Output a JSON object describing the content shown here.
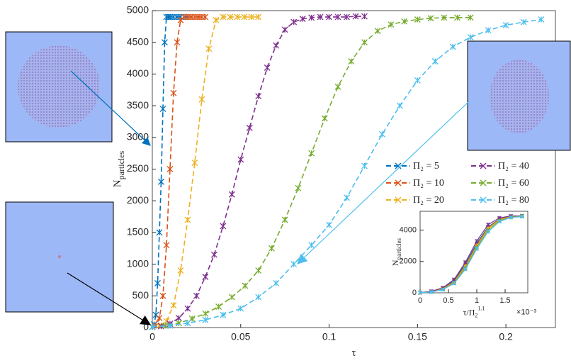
{
  "chart_data": [
    {
      "type": "line",
      "xlabel": "τ",
      "ylabel": [
        "N",
        "particles"
      ],
      "xlim": [
        0,
        0.228
      ],
      "ylim": [
        0,
        5000
      ],
      "xticks": [
        0,
        0.05,
        0.1,
        0.15,
        0.2
      ],
      "yticks": [
        0,
        500,
        1000,
        1500,
        2000,
        2500,
        3000,
        3500,
        4000,
        4500,
        5000
      ],
      "legend": "right",
      "series": [
        {
          "name": "Π₂ = 5",
          "color": "#0072BD",
          "x": [
            0,
            0.001,
            0.002,
            0.003,
            0.004,
            0.005,
            0.006,
            0.007,
            0.008,
            0.009,
            0.01,
            0.012,
            0.014,
            0.016,
            0.018,
            0.02
          ],
          "values": [
            10,
            50,
            200,
            700,
            1500,
            2300,
            3450,
            4500,
            4900,
            4900,
            4900,
            4900,
            4900,
            4900,
            4900,
            4900
          ]
        },
        {
          "name": "Π₂ = 10",
          "color": "#D95319",
          "x": [
            0,
            0.002,
            0.004,
            0.006,
            0.008,
            0.01,
            0.012,
            0.014,
            0.016,
            0.018,
            0.02,
            0.022,
            0.024,
            0.026,
            0.028,
            0.03
          ],
          "values": [
            10,
            30,
            150,
            500,
            1300,
            2500,
            3700,
            4500,
            4850,
            4900,
            4900,
            4900,
            4900,
            4900,
            4900,
            4900
          ]
        },
        {
          "name": "Π₂ = 20",
          "color": "#EDB120",
          "x": [
            0,
            0.004,
            0.008,
            0.012,
            0.016,
            0.02,
            0.024,
            0.028,
            0.032,
            0.036,
            0.04,
            0.044,
            0.048,
            0.052,
            0.056,
            0.06
          ],
          "values": [
            10,
            30,
            100,
            350,
            900,
            1700,
            2600,
            3600,
            4400,
            4850,
            4900,
            4900,
            4900,
            4900,
            4900,
            4900
          ]
        },
        {
          "name": "Π₂ = 40",
          "color": "#7E2F8E",
          "x": [
            0,
            0.005,
            0.01,
            0.015,
            0.02,
            0.025,
            0.03,
            0.035,
            0.04,
            0.045,
            0.05,
            0.055,
            0.06,
            0.065,
            0.07,
            0.075,
            0.08,
            0.085,
            0.09,
            0.095,
            0.1,
            0.105,
            0.11,
            0.115,
            0.12
          ],
          "values": [
            10,
            20,
            60,
            150,
            300,
            500,
            800,
            1150,
            1600,
            2100,
            2650,
            3150,
            3650,
            4100,
            4450,
            4700,
            4820,
            4870,
            4890,
            4900,
            4900,
            4900,
            4900,
            4910,
            4910
          ]
        },
        {
          "name": "Π₂ = 60",
          "color": "#77AC30",
          "x": [
            0,
            0.0075,
            0.015,
            0.0225,
            0.03,
            0.0375,
            0.045,
            0.0525,
            0.06,
            0.0675,
            0.075,
            0.0825,
            0.09,
            0.0975,
            0.105,
            0.1125,
            0.12,
            0.1275,
            0.135,
            0.1425,
            0.15,
            0.1575,
            0.165,
            0.1725,
            0.18
          ],
          "values": [
            10,
            30,
            70,
            140,
            220,
            330,
            480,
            660,
            900,
            1250,
            1700,
            2200,
            2750,
            3300,
            3800,
            4200,
            4500,
            4680,
            4780,
            4830,
            4860,
            4880,
            4890,
            4890,
            4890
          ]
        },
        {
          "name": "Π₂ = 80",
          "color": "#4DBEEE",
          "x": [
            0,
            0.01,
            0.02,
            0.03,
            0.04,
            0.05,
            0.06,
            0.07,
            0.08,
            0.09,
            0.1,
            0.11,
            0.12,
            0.13,
            0.14,
            0.15,
            0.16,
            0.17,
            0.18,
            0.19,
            0.2,
            0.21,
            0.22
          ],
          "values": [
            10,
            30,
            70,
            120,
            200,
            300,
            480,
            700,
            1000,
            1300,
            1620,
            2050,
            2550,
            3050,
            3500,
            3900,
            4200,
            4430,
            4580,
            4690,
            4770,
            4820,
            4860
          ]
        }
      ]
    },
    {
      "type": "line",
      "xlabel": [
        "τ/Π",
        "2",
        "1.1"
      ],
      "x_exponent": "×10⁻³",
      "ylabel": [
        "N",
        "particles"
      ],
      "xlim": [
        0,
        1.9
      ],
      "ylim": [
        0,
        5200
      ],
      "xticks": [
        0,
        0.5,
        1,
        1.5
      ],
      "yticks": [
        0,
        2000,
        4000
      ],
      "series": [
        {
          "color": "#0072BD",
          "x": [
            0,
            0.2,
            0.4,
            0.6,
            0.8,
            1.0,
            1.2,
            1.4,
            1.6,
            1.8
          ],
          "values": [
            10,
            90,
            280,
            780,
            1850,
            3150,
            4200,
            4700,
            4880,
            4900
          ]
        },
        {
          "color": "#D95319",
          "x": [
            0,
            0.2,
            0.4,
            0.6,
            0.8,
            1.0,
            1.2,
            1.4,
            1.6,
            1.8
          ],
          "values": [
            10,
            80,
            260,
            720,
            1750,
            3050,
            4150,
            4680,
            4870,
            4900
          ]
        },
        {
          "color": "#EDB120",
          "x": [
            0,
            0.2,
            0.4,
            0.6,
            0.8,
            1.0,
            1.2,
            1.4,
            1.6,
            1.8
          ],
          "values": [
            10,
            70,
            240,
            680,
            1680,
            2980,
            4100,
            4650,
            4860,
            4900
          ]
        },
        {
          "color": "#7E2F8E",
          "x": [
            0,
            0.2,
            0.4,
            0.6,
            0.8,
            1.0,
            1.2,
            1.4,
            1.6,
            1.8
          ],
          "values": [
            10,
            100,
            320,
            850,
            1950,
            3300,
            4350,
            4780,
            4900,
            4910
          ]
        },
        {
          "color": "#77AC30",
          "x": [
            0,
            0.2,
            0.4,
            0.6,
            0.8,
            1.0,
            1.2,
            1.4,
            1.6,
            1.8
          ],
          "values": [
            10,
            60,
            220,
            640,
            1600,
            2900,
            4000,
            4600,
            4830,
            4890
          ]
        },
        {
          "color": "#4DBEEE",
          "x": [
            0,
            0.2,
            0.4,
            0.6,
            0.8,
            1.0,
            1.2,
            1.4,
            1.6,
            1.8
          ],
          "values": [
            10,
            50,
            200,
            600,
            1500,
            2800,
            3900,
            4550,
            4800,
            4860
          ]
        }
      ]
    }
  ]
}
